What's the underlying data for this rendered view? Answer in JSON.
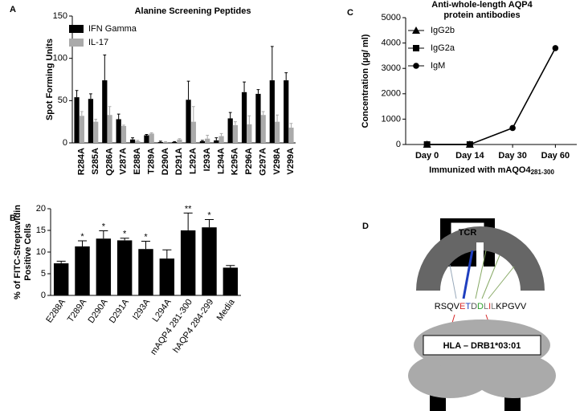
{
  "chart_data": [
    {
      "type": "bar",
      "panel_label": "A",
      "title": "Alanine Screening Peptides",
      "ylabel": "Spot Forming Units",
      "categories": [
        "R284A",
        "S285A",
        "Q286A",
        "V287A",
        "E288A",
        "T289A",
        "D290A",
        "D291A",
        "L292A",
        "I293A",
        "L294A",
        "K295A",
        "P296A",
        "G297A",
        "V298A",
        "V299A"
      ],
      "series": [
        {
          "name": "IFN Gamma",
          "color": "#000000",
          "values": [
            54,
            52,
            74,
            28,
            4,
            9,
            1,
            1,
            51,
            2,
            3,
            29,
            60,
            58,
            74,
            74
          ],
          "errors": [
            8,
            6,
            30,
            6,
            2,
            1,
            1,
            0.5,
            22,
            1,
            3,
            7,
            12,
            5,
            40,
            9
          ]
        },
        {
          "name": "IL-17",
          "color": "#aaaaaa",
          "values": [
            32,
            25,
            33,
            20,
            2,
            11,
            1,
            4,
            25,
            5,
            8,
            21,
            22,
            33,
            25,
            18
          ],
          "errors": [
            5,
            3,
            10,
            1,
            1,
            1,
            0.5,
            1,
            18,
            4,
            3,
            4,
            10,
            4,
            8,
            5
          ]
        }
      ],
      "ylim": [
        0,
        150
      ],
      "yticks": [
        0,
        50,
        100,
        150
      ],
      "legend": "top-left"
    },
    {
      "type": "bar",
      "panel_label": "B",
      "ylabel": [
        "% of FITC-Streptavidin",
        "Positive Cells"
      ],
      "categories": [
        "E288A",
        "T289A",
        "D290A",
        "D291A",
        "I293A",
        "L294A",
        "mAQP4 281-300",
        "hAQP4 284-299",
        "Media"
      ],
      "values": [
        7.4,
        11.3,
        13.1,
        12.7,
        10.7,
        8.5,
        15,
        15.7,
        6.4
      ],
      "errors": [
        0.5,
        1.3,
        1.8,
        0.5,
        1.8,
        2.0,
        4.0,
        1.8,
        0.5
      ],
      "annotations": [
        null,
        "*",
        "*",
        "*",
        "*",
        null,
        "**",
        "*",
        null
      ],
      "color": "#000000",
      "ylim": [
        0,
        20
      ],
      "yticks": [
        0,
        5,
        10,
        15,
        20
      ]
    },
    {
      "type": "line",
      "panel_label": "C",
      "title": [
        "Anti-whole-length AQP4",
        "protein antibodies"
      ],
      "ylabel": "Concentration (µg/ ml)",
      "xlabel": "Immunized with mAQO4",
      "xlabel_sub": "281-300",
      "categories": [
        "Day 0",
        "Day 14",
        "Day 30",
        "Day 60"
      ],
      "series": [
        {
          "name": "IgG2b",
          "color": "#000000",
          "marker": "triangle",
          "values": [
            0,
            0,
            null,
            null
          ]
        },
        {
          "name": "IgG2a",
          "color": "#000000",
          "marker": "square",
          "values": [
            0,
            0,
            null,
            null
          ]
        },
        {
          "name": "IgM",
          "color": "#000000",
          "marker": "circle",
          "values": [
            0,
            0,
            650,
            3800
          ]
        }
      ],
      "ylim": [
        0,
        5000
      ],
      "yticks": [
        0,
        1000,
        2000,
        3000,
        4000,
        5000
      ],
      "legend": "top-left"
    }
  ],
  "diagram": {
    "panel_label": "D",
    "tcr": "TCR",
    "hla": "HLA – DRB1*03:01",
    "peptide": [
      {
        "text": "RSQV",
        "color": "#000000"
      },
      {
        "text": "E",
        "color": "#d62728"
      },
      {
        "text": "T",
        "color": "#1f3fbf"
      },
      {
        "text": "D",
        "color": "#555555"
      },
      {
        "text": "D",
        "color": "#2ca02c"
      },
      {
        "text": "L",
        "color": "#777777"
      },
      {
        "text": "I",
        "color": "#d62728"
      },
      {
        "text": "L",
        "color": "#777777"
      },
      {
        "text": "KPGVV",
        "color": "#000000"
      }
    ]
  }
}
